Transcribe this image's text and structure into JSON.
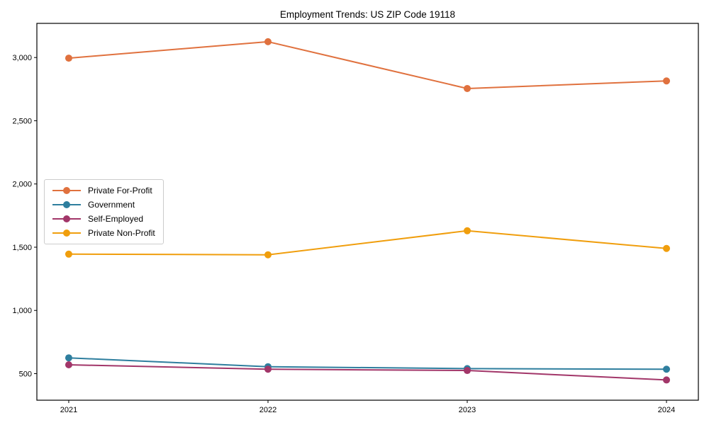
{
  "chart_data": {
    "type": "line",
    "title": "Employment Trends: US ZIP Code 19118",
    "xlabel": "",
    "ylabel": "",
    "x": [
      2021,
      2022,
      2023,
      2024
    ],
    "xticks": [
      {
        "value": 2021,
        "label": "2021"
      },
      {
        "value": 2022,
        "label": "2022"
      },
      {
        "value": 2023,
        "label": "2023"
      },
      {
        "value": 2024,
        "label": "2024"
      }
    ],
    "yticks": [
      {
        "value": 500,
        "label": "500"
      },
      {
        "value": 1000,
        "label": "1,000"
      },
      {
        "value": 1500,
        "label": "1,500"
      },
      {
        "value": 2000,
        "label": "2,000"
      },
      {
        "value": 2500,
        "label": "2,500"
      },
      {
        "value": 3000,
        "label": "3,000"
      }
    ],
    "xlim": [
      2020.84,
      2024.16
    ],
    "ylim": [
      290,
      3270
    ],
    "grid": false,
    "legend_position": "center-left",
    "marker": "circle",
    "series": [
      {
        "name": "Private For-Profit",
        "color": "#e0713e",
        "values": [
          2995,
          3125,
          2755,
          2815
        ]
      },
      {
        "name": "Government",
        "color": "#2e7e9e",
        "values": [
          625,
          555,
          540,
          535
        ]
      },
      {
        "name": "Self-Employed",
        "color": "#a23669",
        "values": [
          570,
          535,
          525,
          450
        ]
      },
      {
        "name": "Private Non-Profit",
        "color": "#f09e0d",
        "values": [
          1445,
          1440,
          1630,
          1490
        ]
      }
    ]
  }
}
